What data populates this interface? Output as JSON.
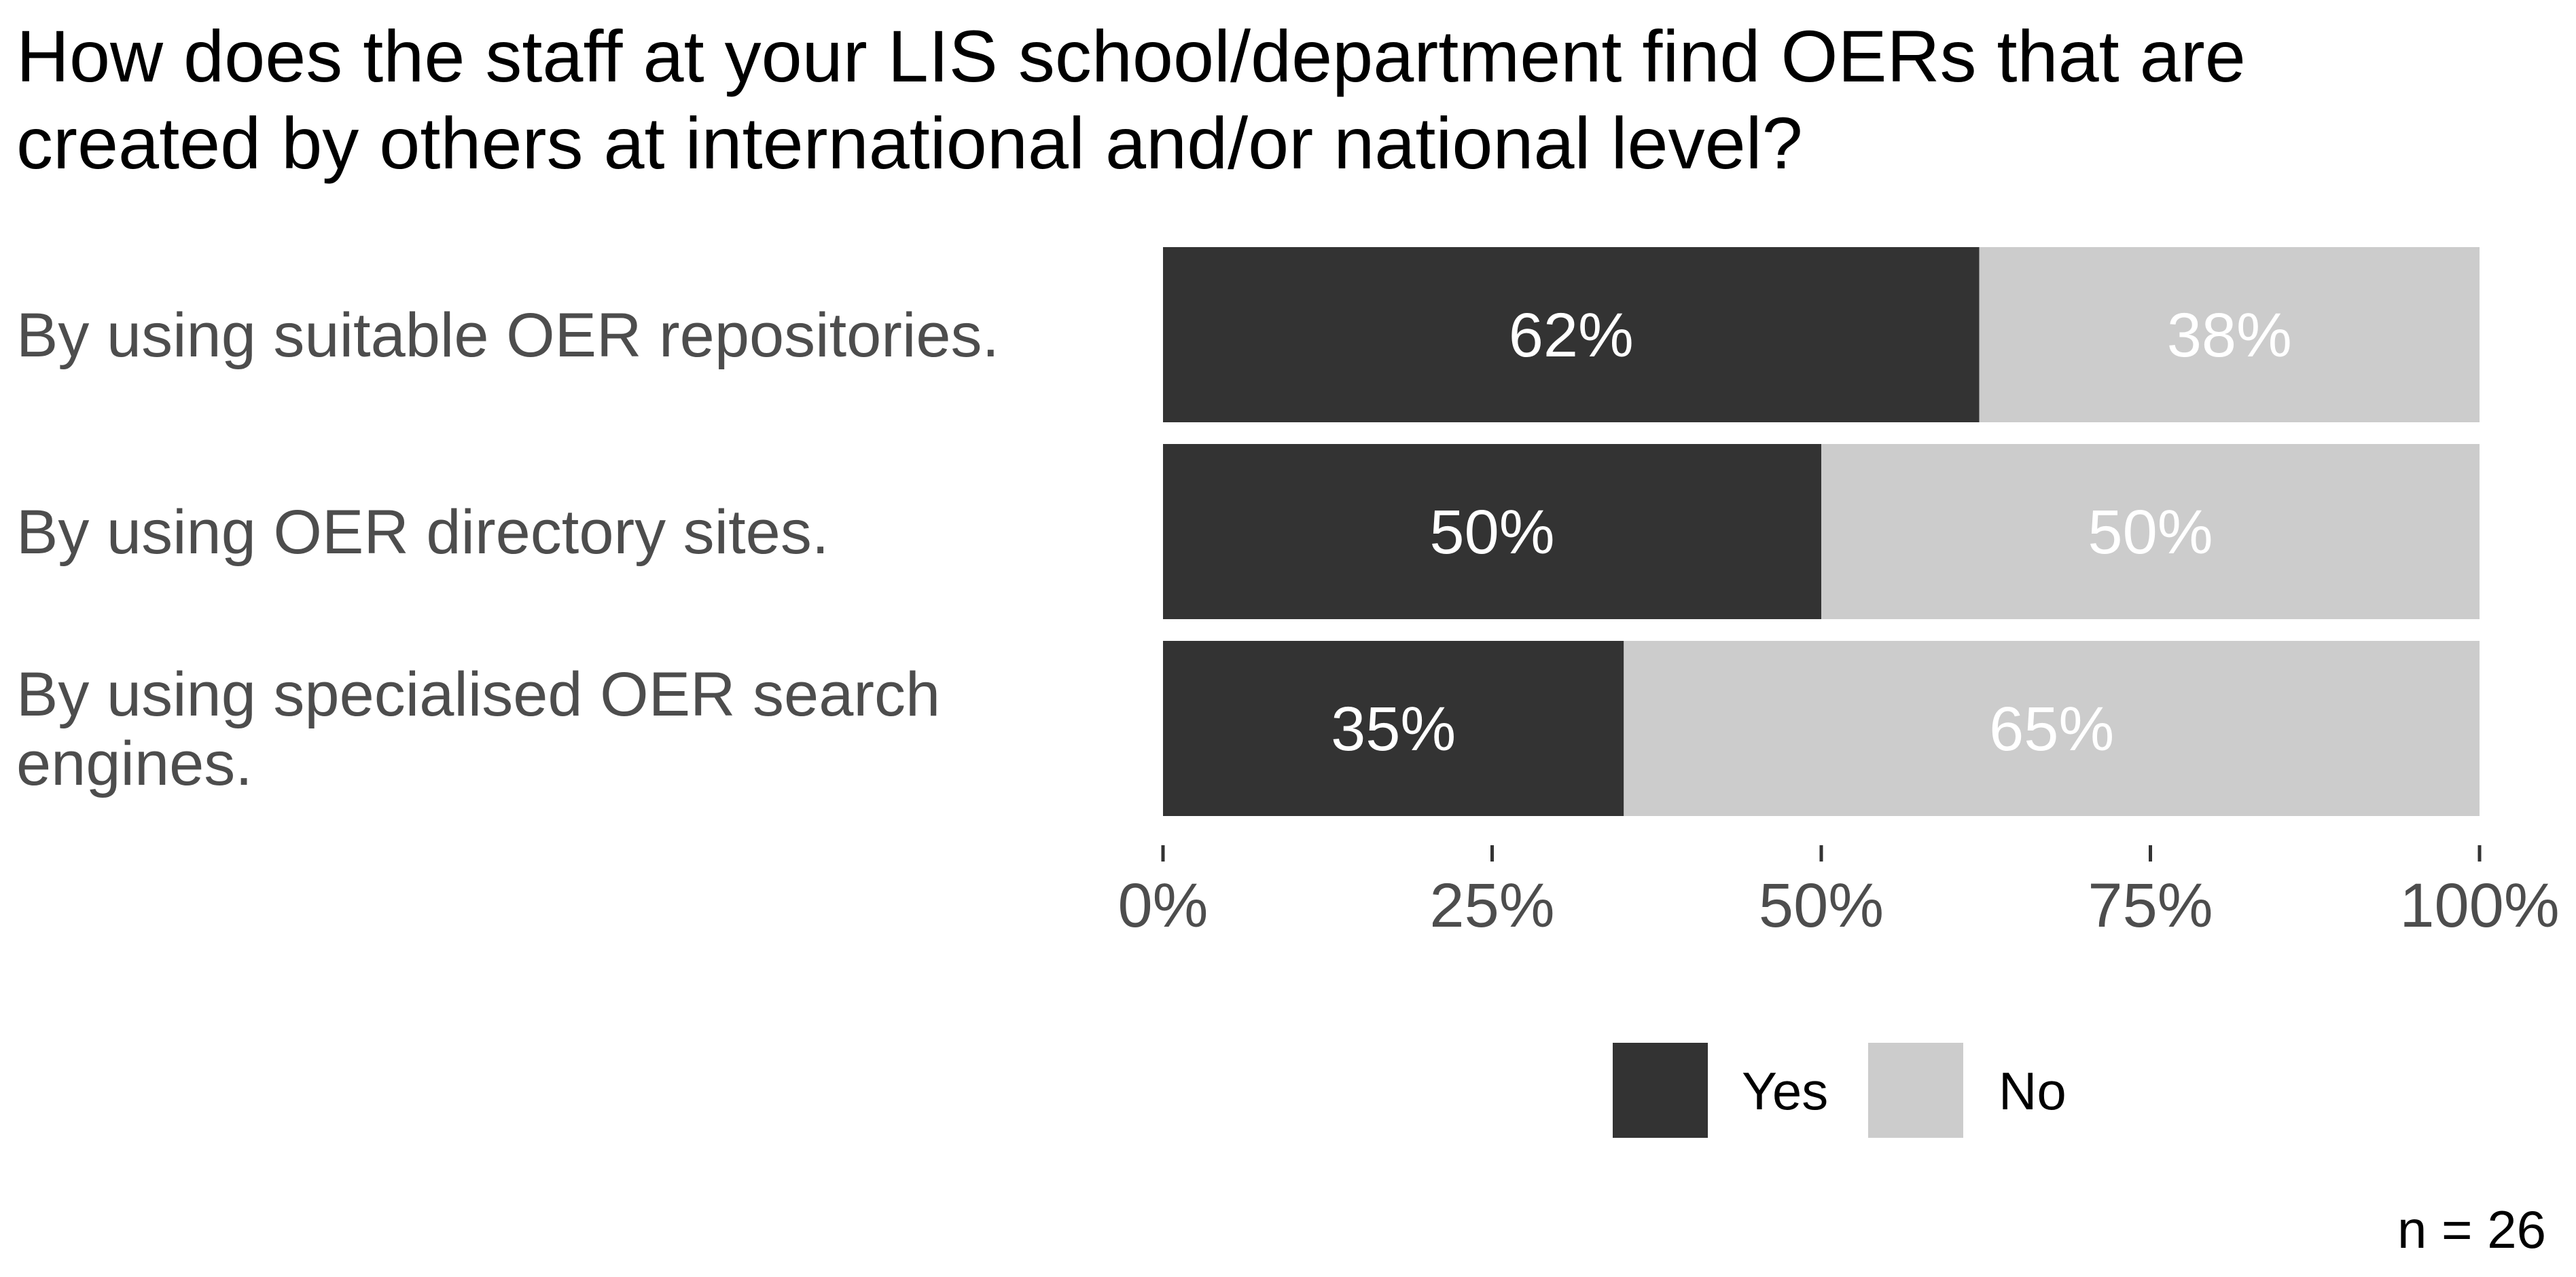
{
  "chart_data": {
    "type": "bar",
    "orientation": "horizontal",
    "stacked": true,
    "title_lines": [
      "How does the staff at your LIS school/department find OERs that are",
      "created by others at international and/or national level?"
    ],
    "categories": [
      [
        "By using suitable OER repositories."
      ],
      [
        "By using OER directory sites."
      ],
      [
        "By using specialised OER search",
        "engines."
      ]
    ],
    "series": [
      {
        "name": "Yes",
        "color": "#333333",
        "values": [
          62,
          50,
          35
        ]
      },
      {
        "name": "No",
        "color": "#cccccc",
        "values": [
          38,
          50,
          65
        ]
      }
    ],
    "data_labels": [
      [
        "62%",
        "50%",
        "35%"
      ],
      [
        "38%",
        "50%",
        "65%"
      ]
    ],
    "xlim": [
      0,
      100
    ],
    "x_ticks": [
      0,
      25,
      50,
      75,
      100
    ],
    "x_tick_labels": [
      "0%",
      "25%",
      "50%",
      "75%",
      "100%"
    ],
    "legend_position": "bottom",
    "grid": false,
    "caption": "n = 26"
  }
}
